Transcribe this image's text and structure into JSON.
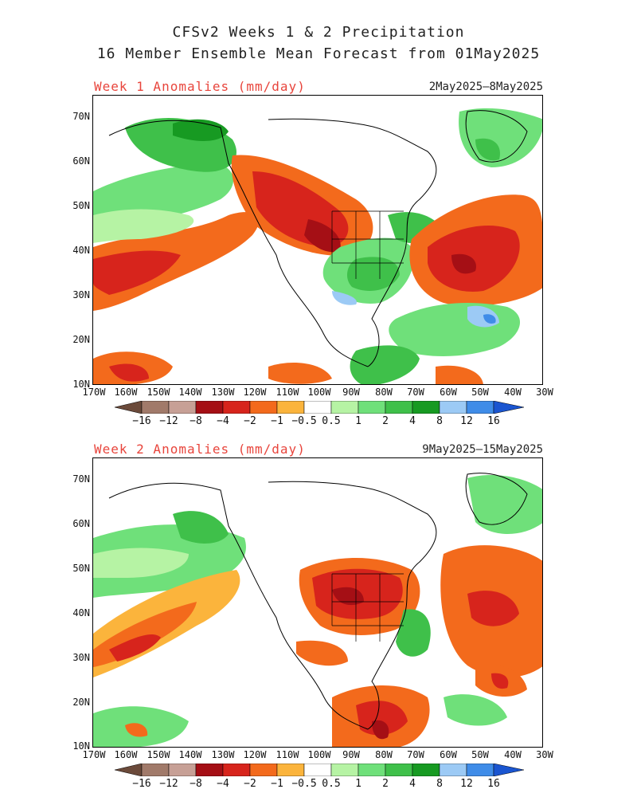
{
  "title_line1": "CFSv2 Weeks 1 & 2 Precipitation",
  "title_line2": "16 Member Ensemble Mean Forecast from 01May2025",
  "panels": [
    {
      "title": "Week 1 Anomalies (mm/day)",
      "range": "2May2025–8May2025"
    },
    {
      "title": "Week 2 Anomalies (mm/day)",
      "range": "9May2025–15May2025"
    }
  ],
  "lat_labels": [
    "70N",
    "60N",
    "50N",
    "40N",
    "30N",
    "20N",
    "10N"
  ],
  "lon_labels": [
    "170W",
    "160W",
    "150W",
    "140W",
    "130W",
    "120W",
    "110W",
    "100W",
    "90W",
    "80W",
    "70W",
    "60W",
    "50W",
    "40W",
    "30W"
  ],
  "colorbar": {
    "labels": [
      "−16",
      "−12",
      "−8",
      "−4",
      "−2",
      "−1",
      "−0.5",
      "0.5",
      "1",
      "2",
      "4",
      "8",
      "12",
      "16"
    ],
    "colors": [
      "#6b4a3a",
      "#a17a6a",
      "#c7a096",
      "#a50f15",
      "#d7241c",
      "#f36a1c",
      "#fbb43c",
      "#ffffff",
      "#b6f3a4",
      "#6fe07a",
      "#3fc04a",
      "#179a22",
      "#9ccaf5",
      "#3f8ce8",
      "#1a55d0"
    ]
  }
}
